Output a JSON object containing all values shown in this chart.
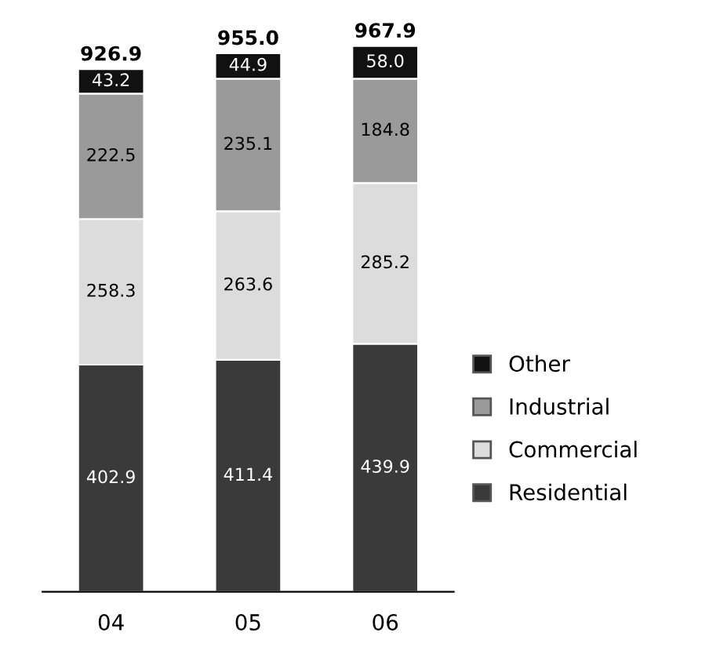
{
  "chart_data": {
    "type": "bar",
    "stacked": true,
    "categories": [
      "04",
      "05",
      "06"
    ],
    "series": [
      {
        "name": "Residential",
        "color": "#3a3a3a",
        "values": [
          402.9,
          411.4,
          439.9
        ],
        "value_labels": [
          "402.9",
          "411.4",
          "439.9"
        ]
      },
      {
        "name": "Commercial",
        "color": "#dcdcdc",
        "values": [
          258.3,
          263.6,
          285.2
        ],
        "value_labels": [
          "258.3",
          "263.6",
          "285.2"
        ]
      },
      {
        "name": "Industrial",
        "color": "#9a9a9a",
        "values": [
          222.5,
          235.1,
          184.8
        ],
        "value_labels": [
          "222.5",
          "235.1",
          "184.8"
        ]
      },
      {
        "name": "Other",
        "color": "#111111",
        "values": [
          43.2,
          44.9,
          58
        ],
        "value_labels": [
          "43.2",
          "44.9",
          "58.0"
        ]
      }
    ],
    "totals": [
      "926.9",
      "955.0",
      "967.9"
    ],
    "legend": "right",
    "grid": false
  }
}
